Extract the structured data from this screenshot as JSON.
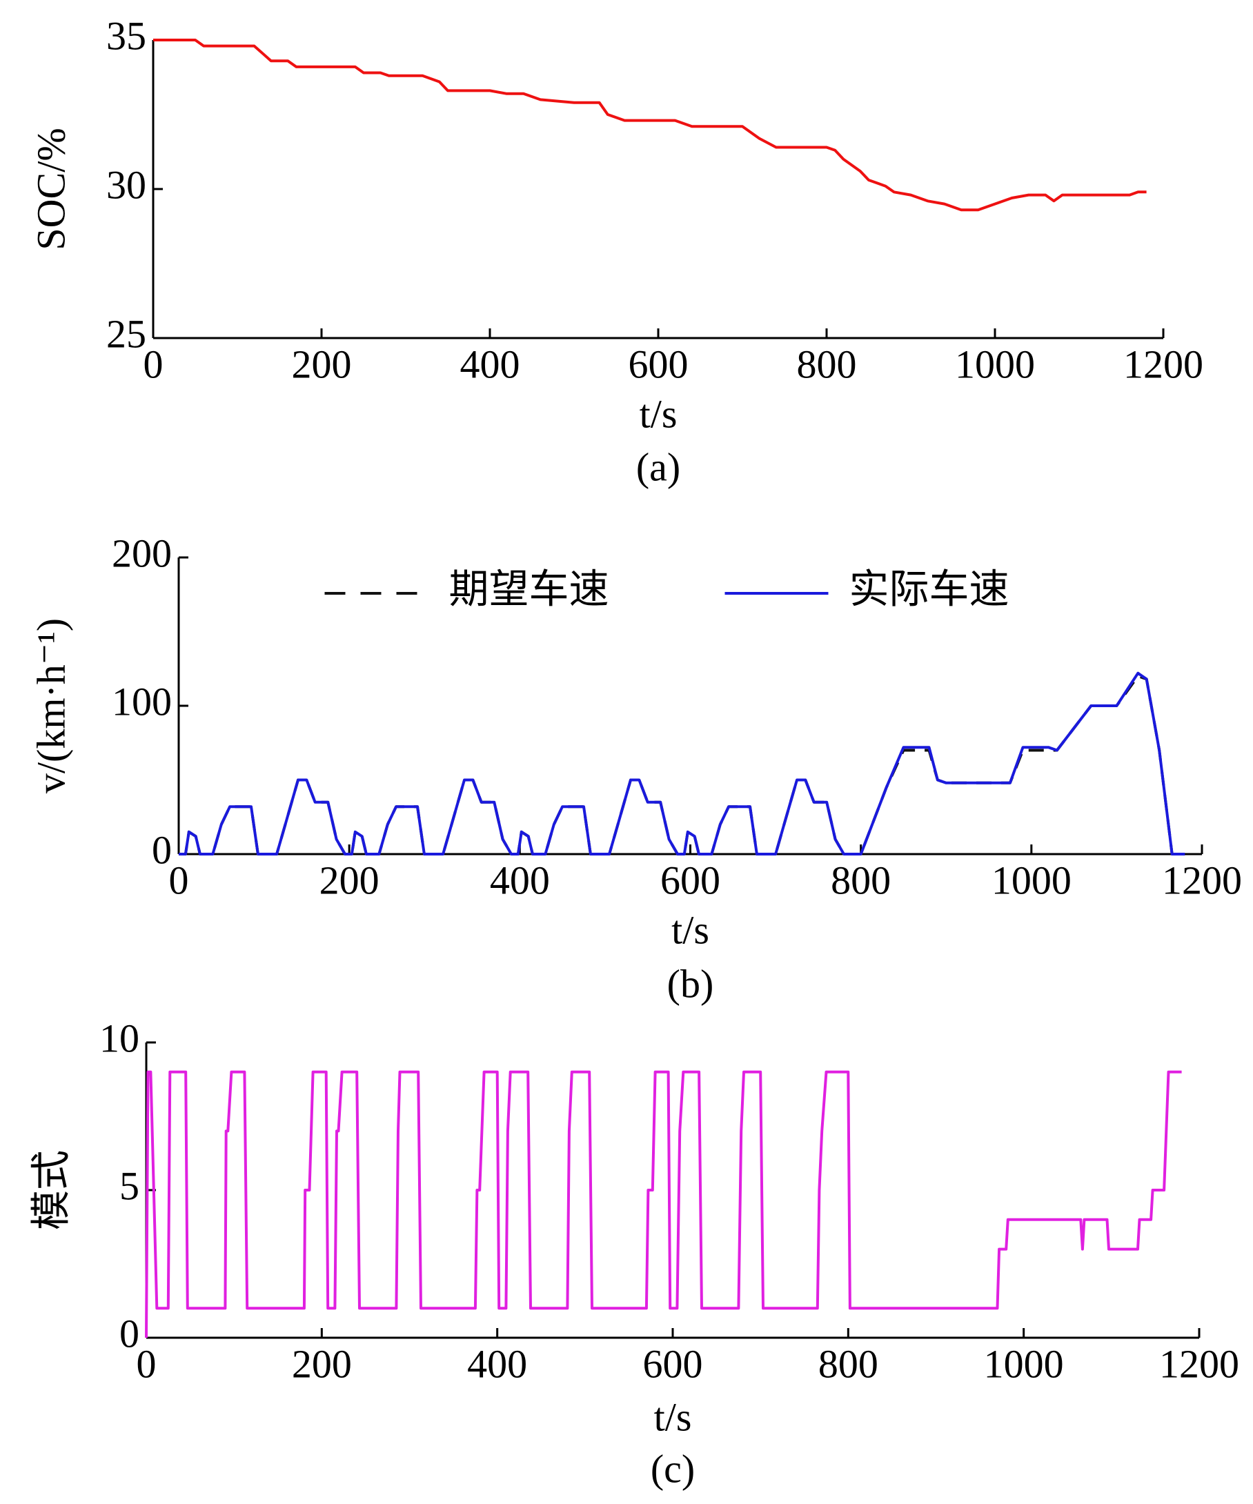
{
  "chart_data": [
    {
      "type": "line",
      "caption": "(a)",
      "xlabel": "t/s",
      "ylabel": "SOC/%",
      "color": "#ee1111",
      "x": [
        0,
        50,
        60,
        120,
        140,
        160,
        170,
        240,
        250,
        270,
        280,
        320,
        340,
        350,
        400,
        420,
        440,
        460,
        500,
        530,
        540,
        560,
        600,
        620,
        640,
        700,
        720,
        740,
        800,
        810,
        820,
        840,
        850,
        870,
        880,
        900,
        920,
        940,
        960,
        980,
        1000,
        1020,
        1040,
        1060,
        1070,
        1080,
        1100,
        1120,
        1140,
        1160,
        1170,
        1180
      ],
      "values": [
        35,
        35,
        34.8,
        34.8,
        34.3,
        34.3,
        34.1,
        34.1,
        33.9,
        33.9,
        33.8,
        33.8,
        33.6,
        33.3,
        33.3,
        33.2,
        33.2,
        33.0,
        32.9,
        32.9,
        32.5,
        32.3,
        32.3,
        32.3,
        32.1,
        32.1,
        31.7,
        31.4,
        31.4,
        31.3,
        31.0,
        30.6,
        30.3,
        30.1,
        29.9,
        29.8,
        29.6,
        29.5,
        29.3,
        29.3,
        29.5,
        29.7,
        29.8,
        29.8,
        29.6,
        29.8,
        29.8,
        29.8,
        29.8,
        29.8,
        29.9,
        29.9
      ],
      "xlim": [
        0,
        1200
      ],
      "xticks": [
        0,
        200,
        400,
        600,
        800,
        1000,
        1200
      ],
      "ylim": [
        25,
        35
      ],
      "yticks": [
        25,
        30,
        35
      ]
    },
    {
      "type": "line",
      "caption": "(b)",
      "xlabel": "t/s",
      "ylabel": "v/(km·h⁻¹)",
      "legend": "upper center",
      "x": [
        0,
        8,
        12,
        20,
        25,
        40,
        50,
        60,
        85,
        93,
        115,
        125,
        140,
        150,
        160,
        175,
        185,
        195,
        203,
        207,
        215,
        220,
        235,
        245,
        255,
        280,
        288,
        310,
        320,
        335,
        345,
        355,
        370,
        380,
        390,
        398,
        402,
        410,
        415,
        430,
        440,
        450,
        475,
        483,
        505,
        515,
        530,
        540,
        550,
        565,
        575,
        585,
        593,
        597,
        605,
        610,
        625,
        635,
        645,
        670,
        678,
        700,
        710,
        725,
        735,
        745,
        760,
        770,
        780,
        800,
        810,
        830,
        850,
        880,
        890,
        900,
        975,
        990,
        1020,
        1030,
        1070,
        1100,
        1125,
        1135,
        1150,
        1165,
        1180
      ],
      "series": [
        {
          "name": "期望车速",
          "color": "#111111",
          "dash": true,
          "values": [
            0,
            0,
            15,
            12,
            0,
            0,
            20,
            32,
            32,
            0,
            0,
            20,
            50,
            50,
            35,
            35,
            10,
            0,
            0,
            15,
            12,
            0,
            0,
            20,
            32,
            32,
            0,
            0,
            20,
            50,
            50,
            35,
            35,
            10,
            0,
            0,
            15,
            12,
            0,
            0,
            20,
            32,
            32,
            0,
            0,
            20,
            50,
            50,
            35,
            35,
            10,
            0,
            0,
            15,
            12,
            0,
            0,
            20,
            32,
            32,
            0,
            0,
            20,
            50,
            50,
            35,
            35,
            10,
            0,
            0,
            15,
            45,
            70,
            70,
            50,
            48,
            48,
            70,
            70,
            70,
            100,
            100,
            120,
            118,
            70,
            0,
            0
          ]
        },
        {
          "name": "实际车速",
          "color": "#1a1adc",
          "dash": false,
          "values": [
            0,
            0,
            15,
            12,
            0,
            0,
            20,
            32,
            32,
            0,
            0,
            20,
            50,
            50,
            35,
            35,
            10,
            0,
            0,
            15,
            12,
            0,
            0,
            20,
            32,
            32,
            0,
            0,
            20,
            50,
            50,
            35,
            35,
            10,
            0,
            0,
            15,
            12,
            0,
            0,
            20,
            32,
            32,
            0,
            0,
            20,
            50,
            50,
            35,
            35,
            10,
            0,
            0,
            15,
            12,
            0,
            0,
            20,
            32,
            32,
            0,
            0,
            20,
            50,
            50,
            35,
            35,
            10,
            0,
            0,
            15,
            45,
            72,
            72,
            50,
            48,
            48,
            72,
            72,
            70,
            100,
            100,
            122,
            118,
            70,
            0,
            0
          ]
        }
      ],
      "xlim": [
        0,
        1200
      ],
      "xticks": [
        0,
        200,
        400,
        600,
        800,
        1000,
        1200
      ],
      "ylim": [
        0,
        200
      ],
      "yticks": [
        0,
        100,
        200
      ]
    },
    {
      "type": "line",
      "caption": "(c)",
      "xlabel": "t/s",
      "ylabel": "模式",
      "color": "#e020e0",
      "x": [
        0,
        2,
        5,
        12,
        25,
        27,
        45,
        47,
        90,
        91,
        93,
        97,
        112,
        115,
        180,
        181,
        186,
        190,
        205,
        207,
        215,
        217,
        219,
        223,
        240,
        243,
        285,
        287,
        289,
        310,
        313,
        375,
        377,
        380,
        385,
        400,
        402,
        410,
        412,
        415,
        435,
        438,
        480,
        482,
        485,
        505,
        508,
        570,
        572,
        577,
        580,
        595,
        597,
        605,
        608,
        612,
        630,
        633,
        675,
        678,
        681,
        700,
        703,
        765,
        767,
        770,
        775,
        800,
        802,
        970,
        972,
        980,
        982,
        1065,
        1067,
        1069,
        1095,
        1097,
        1130,
        1132,
        1145,
        1147,
        1160,
        1165,
        1180
      ],
      "values": [
        0,
        9,
        9,
        1,
        1,
        9,
        9,
        1,
        1,
        7,
        7,
        9,
        9,
        1,
        1,
        5,
        5,
        9,
        9,
        1,
        1,
        7,
        7,
        9,
        9,
        1,
        1,
        7,
        9,
        9,
        1,
        1,
        5,
        5,
        9,
        9,
        1,
        1,
        7,
        9,
        9,
        1,
        1,
        7,
        9,
        9,
        1,
        1,
        5,
        5,
        9,
        9,
        1,
        1,
        7,
        9,
        9,
        1,
        1,
        7,
        9,
        9,
        1,
        1,
        5,
        7,
        9,
        9,
        1,
        1,
        3,
        3,
        4,
        4,
        3,
        4,
        4,
        3,
        3,
        4,
        4,
        5,
        5,
        9,
        9
      ],
      "xlim": [
        0,
        1200
      ],
      "xticks": [
        0,
        200,
        400,
        600,
        800,
        1000,
        1200
      ],
      "ylim": [
        0,
        10
      ],
      "yticks": [
        0,
        5,
        10
      ]
    }
  ]
}
